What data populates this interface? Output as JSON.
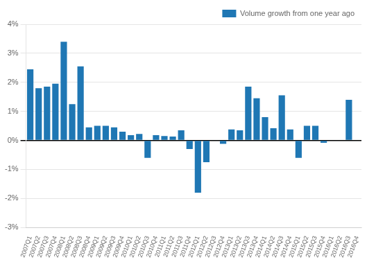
{
  "chart_data": {
    "type": "bar",
    "categories": [
      "2007Q1",
      "2007Q2",
      "2007Q3",
      "2007Q4",
      "2008Q1",
      "2008Q2",
      "2008Q3",
      "2008Q4",
      "2009Q1",
      "2009Q2",
      "2009Q3",
      "2009Q4",
      "2010Q1",
      "2010Q2",
      "2010Q3",
      "2010Q4",
      "2011Q1",
      "2011Q2",
      "2011Q3",
      "2011Q4",
      "2012Q1",
      "2012Q2",
      "2012Q3",
      "2012Q4",
      "2013Q1",
      "2013Q2",
      "2013Q3",
      "2013Q4",
      "2014Q1",
      "2014Q2",
      "2014Q3",
      "2014Q4",
      "2015Q1",
      "2015Q2",
      "2015Q3",
      "2015Q4",
      "2016Q1",
      "2016Q2",
      "2016Q3",
      "2016Q4"
    ],
    "series": [
      {
        "name": "Volume growth from one year ago",
        "color": "#1f77b4",
        "values": [
          2.45,
          1.8,
          1.85,
          1.95,
          3.4,
          1.25,
          2.55,
          0.45,
          0.5,
          0.5,
          0.45,
          0.3,
          0.18,
          0.22,
          -0.6,
          0.18,
          0.15,
          0.13,
          0.35,
          -0.3,
          -1.8,
          -0.75,
          0.0,
          -0.12,
          0.38,
          0.35,
          1.85,
          1.45,
          0.8,
          0.42,
          1.55,
          0.38,
          -0.6,
          0.5,
          0.5,
          -0.08,
          0.02,
          0.02,
          1.4,
          0.02
        ]
      }
    ],
    "ylim": [
      -3.0,
      4.0
    ],
    "yticks": [
      {
        "value": -3,
        "label": "-3%"
      },
      {
        "value": -2,
        "label": "-2%"
      },
      {
        "value": -1,
        "label": "-1%"
      },
      {
        "value": 0,
        "label": "0%"
      },
      {
        "value": 1,
        "label": "1%"
      },
      {
        "value": 2,
        "label": "2%"
      },
      {
        "value": 3,
        "label": "3%"
      },
      {
        "value": 4,
        "label": "4%"
      }
    ],
    "grid": true,
    "legend": "upper right"
  }
}
